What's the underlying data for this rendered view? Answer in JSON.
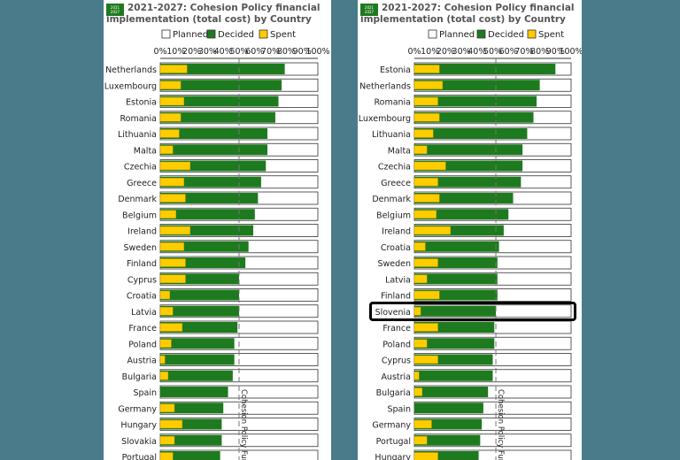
{
  "colors": {
    "background": "#4a7b8a",
    "planned": "#ffffff",
    "decided": "#1e7a1e",
    "spent": "#ffcc00",
    "bar_border": "#333333"
  },
  "chart_data": [
    {
      "type": "bar",
      "orientation": "horizontal",
      "badge": "2021 2027",
      "title": "2021-2027: Cohesion Policy financial implementation (total cost) by Country",
      "legend": [
        "Planned",
        "Decided",
        "Spent"
      ],
      "x_ticks": [
        "0%",
        "10%",
        "20%",
        "30%",
        "40%",
        "50%",
        "60%",
        "70%",
        "80%",
        "90%",
        "100%"
      ],
      "xlim": [
        0,
        100
      ],
      "reference_line": {
        "value": 50,
        "label": "Cohesion Policy Fund"
      },
      "categories": [
        "Netherlands",
        "Luxembourg",
        "Estonia",
        "Romania",
        "Lithuania",
        "Malta",
        "Czechia",
        "Greece",
        "Denmark",
        "Belgium",
        "Ireland",
        "Sweden",
        "Finland",
        "Cyprus",
        "Croatia",
        "Latvia",
        "France",
        "Poland",
        "Austria",
        "Bulgaria",
        "Spain",
        "Germany",
        "Hungary",
        "Slovakia",
        "Portugal"
      ],
      "series": [
        {
          "name": "Planned",
          "values": [
            100,
            100,
            100,
            100,
            100,
            100,
            100,
            100,
            100,
            100,
            100,
            100,
            100,
            100,
            100,
            100,
            100,
            100,
            100,
            100,
            100,
            100,
            100,
            100,
            100
          ]
        },
        {
          "name": "Decided",
          "values": [
            79,
            77,
            75,
            73,
            68,
            68,
            67,
            64,
            62,
            60,
            59,
            56,
            54,
            50,
            50,
            50,
            49,
            47,
            47,
            46,
            43,
            40,
            39,
            39,
            38
          ]
        },
        {
          "name": "Spent",
          "values": [
            17,
            13,
            15,
            13,
            12,
            8,
            19,
            15,
            16,
            10,
            19,
            15,
            16,
            16,
            6,
            8,
            14,
            7,
            3,
            5,
            0,
            9,
            14,
            9,
            8
          ]
        }
      ]
    },
    {
      "type": "bar",
      "orientation": "horizontal",
      "badge": "2021 2027",
      "title": "2021-2027: Cohesion Policy financial implementation (total cost) by Country",
      "legend": [
        "Planned",
        "Decided",
        "Spent"
      ],
      "x_ticks": [
        "0%",
        "10%",
        "20%",
        "30%",
        "40%",
        "50%",
        "60%",
        "70%",
        "80%",
        "90%",
        "100%"
      ],
      "xlim": [
        0,
        100
      ],
      "reference_line": {
        "value": 52,
        "label": "Cohesion Policy Fund"
      },
      "highlighted": "Slovenia",
      "categories": [
        "Estonia",
        "Netherlands",
        "Romania",
        "Luxembourg",
        "Lithuania",
        "Malta",
        "Czechia",
        "Greece",
        "Denmark",
        "Belgium",
        "Ireland",
        "Croatia",
        "Sweden",
        "Latvia",
        "Finland",
        "Slovenia",
        "France",
        "Poland",
        "Cyprus",
        "Austria",
        "Bulgaria",
        "Spain",
        "Germany",
        "Portugal",
        "Hungary"
      ],
      "series": [
        {
          "name": "Planned",
          "values": [
            100,
            100,
            100,
            100,
            100,
            100,
            100,
            100,
            100,
            100,
            100,
            100,
            100,
            100,
            100,
            100,
            100,
            100,
            100,
            100,
            100,
            100,
            100,
            100,
            100
          ]
        },
        {
          "name": "Decided",
          "values": [
            90,
            80,
            78,
            76,
            72,
            69,
            69,
            68,
            63,
            60,
            57,
            54,
            53,
            53,
            53,
            52,
            51,
            51,
            50,
            50,
            47,
            44,
            43,
            42,
            41
          ]
        },
        {
          "name": "Spent",
          "values": [
            16,
            18,
            15,
            16,
            12,
            8,
            20,
            15,
            16,
            14,
            23,
            7,
            15,
            8,
            16,
            4,
            15,
            8,
            15,
            3,
            5,
            0,
            11,
            8,
            15
          ]
        }
      ]
    }
  ]
}
